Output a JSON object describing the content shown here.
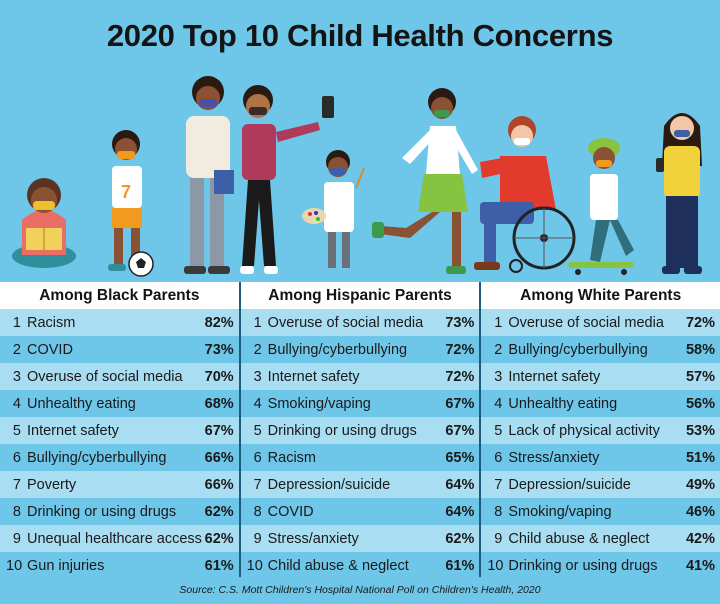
{
  "title": "2020 Top 10 Child Health Concerns",
  "columns": [
    {
      "header": "Among Black Parents",
      "rows": [
        {
          "rank": "1",
          "label": "Racism",
          "pct": "82%"
        },
        {
          "rank": "2",
          "label": "COVID",
          "pct": "73%"
        },
        {
          "rank": "3",
          "label": "Overuse of social media",
          "pct": "70%"
        },
        {
          "rank": "4",
          "label": "Unhealthy eating",
          "pct": "68%"
        },
        {
          "rank": "5",
          "label": "Internet safety",
          "pct": "67%"
        },
        {
          "rank": "6",
          "label": "Bullying/cyberbullying",
          "pct": "66%"
        },
        {
          "rank": "7",
          "label": "Poverty",
          "pct": "66%"
        },
        {
          "rank": "8",
          "label": "Drinking or using drugs",
          "pct": "62%"
        },
        {
          "rank": "9",
          "label": "Unequal healthcare access",
          "pct": "62%"
        },
        {
          "rank": "10",
          "label": "Gun injuries",
          "pct": "61%"
        }
      ]
    },
    {
      "header": "Among Hispanic Parents",
      "rows": [
        {
          "rank": "1",
          "label": "Overuse of social media",
          "pct": "73%"
        },
        {
          "rank": "2",
          "label": "Bullying/cyberbullying",
          "pct": "72%"
        },
        {
          "rank": "3",
          "label": "Internet safety",
          "pct": "72%"
        },
        {
          "rank": "4",
          "label": "Smoking/vaping",
          "pct": "67%"
        },
        {
          "rank": "5",
          "label": "Drinking or using drugs",
          "pct": "67%"
        },
        {
          "rank": "6",
          "label": "Racism",
          "pct": "65%"
        },
        {
          "rank": "7",
          "label": "Depression/suicide",
          "pct": "64%"
        },
        {
          "rank": "8",
          "label": "COVID",
          "pct": "64%"
        },
        {
          "rank": "9",
          "label": "Stress/anxiety",
          "pct": "62%"
        },
        {
          "rank": "10",
          "label": "Child abuse & neglect",
          "pct": "61%"
        }
      ]
    },
    {
      "header": "Among White Parents",
      "rows": [
        {
          "rank": "1",
          "label": "Overuse of social media",
          "pct": "72%"
        },
        {
          "rank": "2",
          "label": "Bullying/cyberbullying",
          "pct": "58%"
        },
        {
          "rank": "3",
          "label": "Internet safety",
          "pct": "57%"
        },
        {
          "rank": "4",
          "label": "Unhealthy eating",
          "pct": "56%"
        },
        {
          "rank": "5",
          "label": "Lack of physical activity",
          "pct": "53%"
        },
        {
          "rank": "6",
          "label": "Stress/anxiety",
          "pct": "51%"
        },
        {
          "rank": "7",
          "label": "Depression/suicide",
          "pct": "49%"
        },
        {
          "rank": "8",
          "label": "Smoking/vaping",
          "pct": "46%"
        },
        {
          "rank": "9",
          "label": "Child abuse & neglect",
          "pct": "42%"
        },
        {
          "rank": "10",
          "label": "Drinking or using drugs",
          "pct": "41%"
        }
      ]
    }
  ],
  "source": "Source: C.S. Mott Children's Hospital National Poll on Children's Health, 2020",
  "colors": {
    "background": "#6ec6e9",
    "row_light": "#a9ddf2",
    "header_bg": "#ffffff",
    "divider": "#1b5c7f"
  },
  "illustration": {
    "figures": [
      "girl-reading-icon",
      "boy-soccer-icon",
      "parent-with-book-icon",
      "woman-selfie-icon",
      "child-painter-icon",
      "woman-running-icon",
      "man-wheelchair-icon",
      "boy-skateboard-icon",
      "woman-phone-icon"
    ]
  }
}
